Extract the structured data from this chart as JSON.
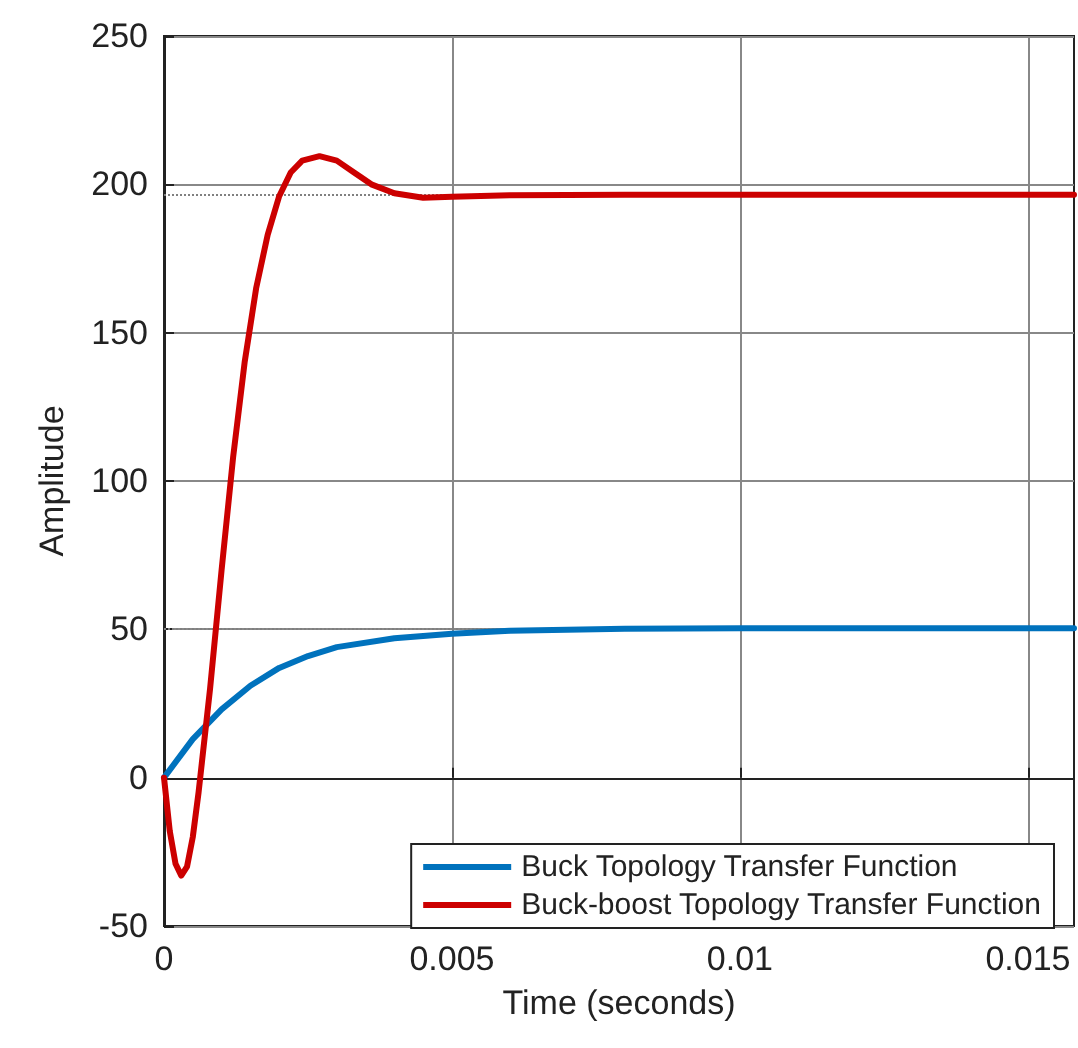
{
  "chart_data": {
    "type": "line",
    "xlabel": "Time (seconds)",
    "ylabel": "Amplitude",
    "xlim": [
      0,
      0.0158
    ],
    "xticks": [
      0,
      0.005,
      0.01,
      0.015
    ],
    "ylim": [
      -50,
      250
    ],
    "yticks": [
      -50,
      0,
      50,
      100,
      150,
      200,
      250
    ],
    "grid": true,
    "legend": "bottom right",
    "marker": "none",
    "line_style": "solid",
    "ref_lines": [
      {
        "axis": "y",
        "value": 196.5,
        "color": "#808080",
        "line_style": "dotted"
      },
      {
        "axis": "y",
        "value": 50.4,
        "color": "#808080",
        "line_style": "dotted"
      }
    ],
    "series": [
      {
        "name": "Buck Topology Transfer Function",
        "color": "#0072bd",
        "x": [
          0,
          0.0005,
          0.001,
          0.0015,
          0.002,
          0.0025,
          0.003,
          0.004,
          0.005,
          0.006,
          0.008,
          0.01,
          0.0158
        ],
        "values": [
          0,
          13,
          23,
          31,
          37,
          41,
          44,
          47,
          48.5,
          49.5,
          50.2,
          50.4,
          50.4
        ]
      },
      {
        "name": "Buck-boost Topology Transfer Function",
        "color": "#cc0000",
        "x": [
          0,
          0.0001,
          0.0002,
          0.0003,
          0.0004,
          0.0005,
          0.0006,
          0.0008,
          0.001,
          0.0012,
          0.0014,
          0.0016,
          0.0018,
          0.002,
          0.0022,
          0.0024,
          0.0027,
          0.003,
          0.0033,
          0.0036,
          0.004,
          0.0045,
          0.005,
          0.006,
          0.008,
          0.01,
          0.0158
        ],
        "values": [
          0,
          -18,
          -29,
          -33,
          -30,
          -20,
          -5,
          30,
          70,
          108,
          140,
          165,
          183,
          196,
          204,
          208,
          209.5,
          208,
          204,
          200,
          197,
          195.5,
          195.8,
          196.3,
          196.5,
          196.5,
          196.5
        ]
      }
    ]
  }
}
